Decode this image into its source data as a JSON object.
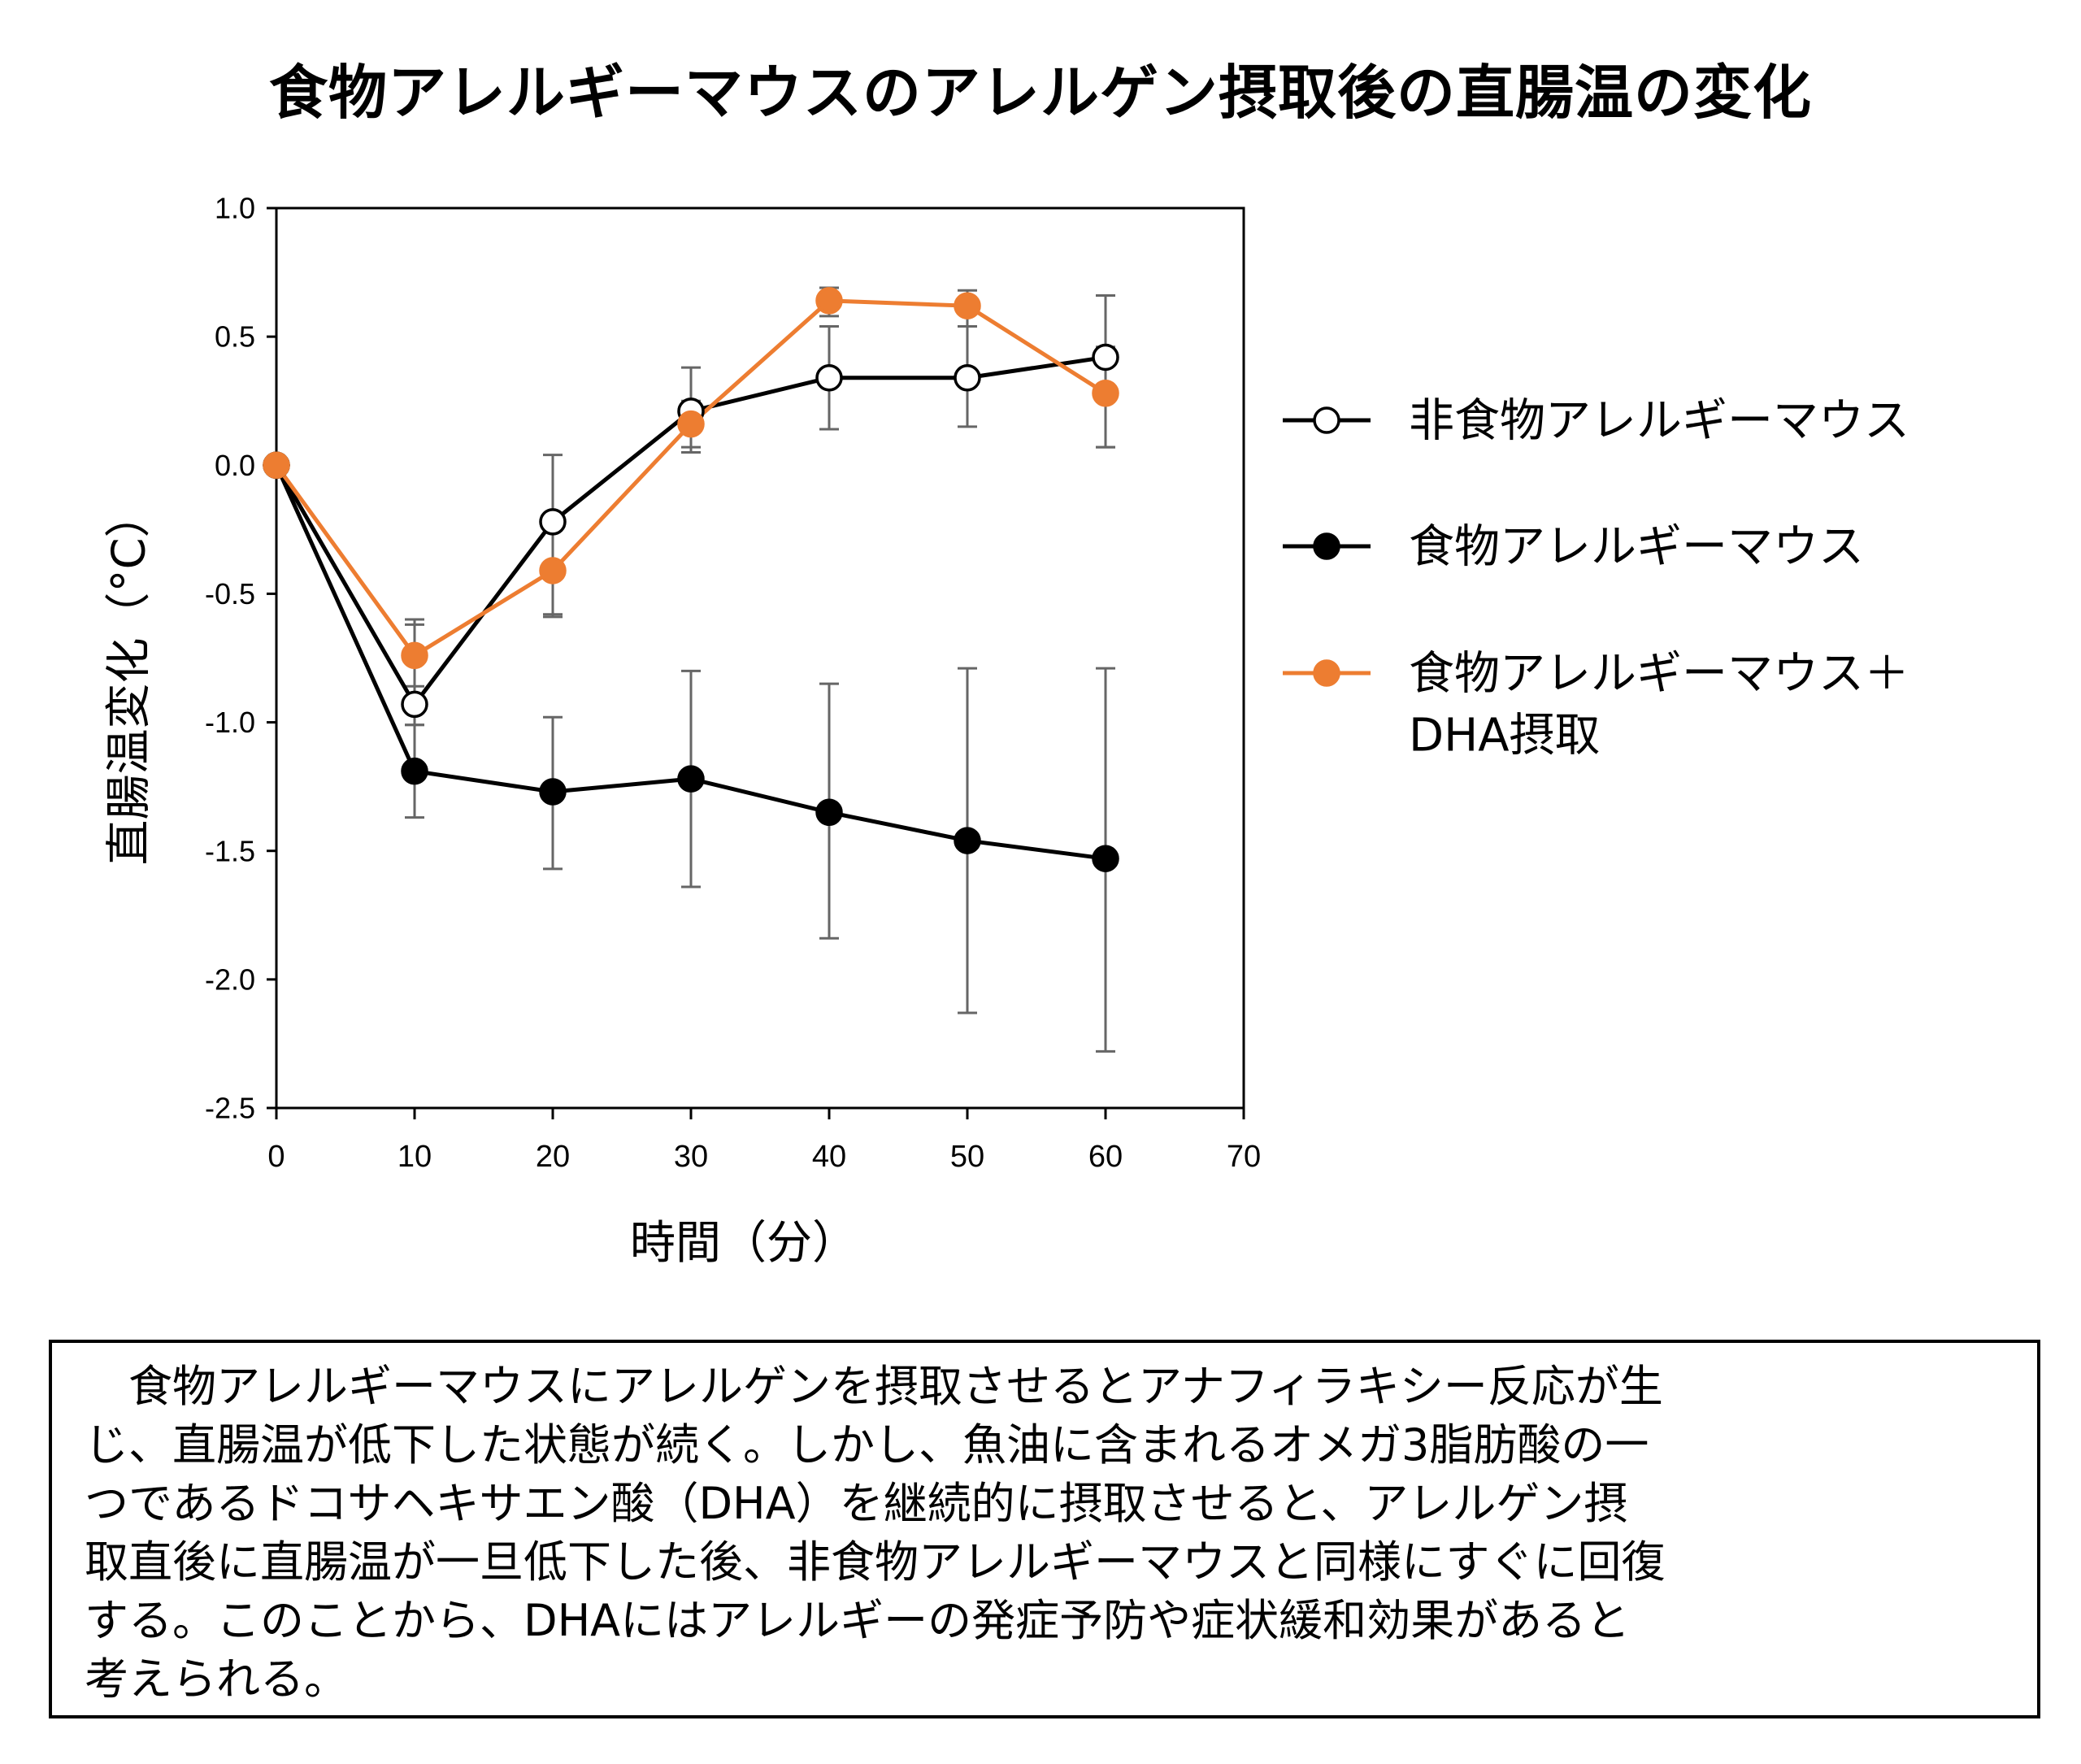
{
  "chart_data": {
    "type": "line",
    "title": "食物アレルギーマウスのアレルゲン摂取後の直腸温の変化",
    "xlabel": "時間（分）",
    "ylabel": "直腸温変化（°C）",
    "xlim": [
      0,
      70
    ],
    "ylim": [
      -2.5,
      1.0
    ],
    "x_ticks": [
      "0",
      "10",
      "20",
      "30",
      "40",
      "50",
      "60",
      "70"
    ],
    "y_ticks": [
      "1.0",
      "0.5",
      "0.0",
      "-0.5",
      "-1.0",
      "-1.5",
      "-2.0",
      "-2.5"
    ],
    "grid": false,
    "legend_position": "right",
    "series": [
      {
        "name": "非食物アレルギーマウス",
        "color": "#000000",
        "marker": "open-circle",
        "x": [
          0,
          10,
          20,
          30,
          40,
          50,
          60
        ],
        "y": [
          0.0,
          -0.93,
          -0.22,
          0.21,
          0.34,
          0.34,
          0.42
        ],
        "error_low": [
          0.0,
          -1.01,
          -0.58,
          0.05,
          0.14,
          0.15,
          0.07
        ],
        "error_high": [
          0.0,
          -0.62,
          0.04,
          0.38,
          0.54,
          0.54,
          0.66
        ]
      },
      {
        "name": "食物アレルギーマウス",
        "color": "#000000",
        "marker": "filled-circle",
        "x": [
          0,
          10,
          20,
          30,
          40,
          50,
          60
        ],
        "y": [
          0.0,
          -1.19,
          -1.27,
          -1.22,
          -1.35,
          -1.46,
          -1.53
        ],
        "error_low": [
          0.0,
          -1.37,
          -1.57,
          -1.64,
          -1.84,
          -2.13,
          -2.28
        ],
        "error_high": [
          0.0,
          -1.01,
          -0.98,
          -0.8,
          -0.85,
          -0.79,
          -0.79
        ]
      },
      {
        "name": "食物アレルギーマウス＋",
        "name_line2": "DHA摂取",
        "color": "#ED7D31",
        "marker": "filled-circle",
        "x": [
          0,
          10,
          20,
          30,
          40,
          50,
          60
        ],
        "y": [
          0.0,
          -0.74,
          -0.41,
          0.16,
          0.64,
          0.62,
          0.28
        ],
        "error_low": [
          0.0,
          -0.86,
          -0.59,
          0.07,
          0.58,
          0.54,
          0.07
        ],
        "error_high": [
          0.0,
          -0.6,
          -0.2,
          0.25,
          0.69,
          0.68,
          0.46
        ]
      }
    ]
  },
  "note": {
    "lines": [
      "　食物アレルギーマウスにアレルゲンを摂取させるとアナフィラキシー反応が生",
      "じ、直腸温が低下した状態が続く。しかし、魚油に含まれるオメガ3脂肪酸の一",
      "つであるドコサヘキサエン酸（DHA）を継続的に摂取させると、アレルゲン摂",
      "取直後に直腸温が一旦低下した後、非食物アレルギーマウスと同様にすぐに回復",
      "する。このことから、DHAにはアレルギーの発症予防や症状緩和効果があると",
      "考えられる。"
    ]
  }
}
